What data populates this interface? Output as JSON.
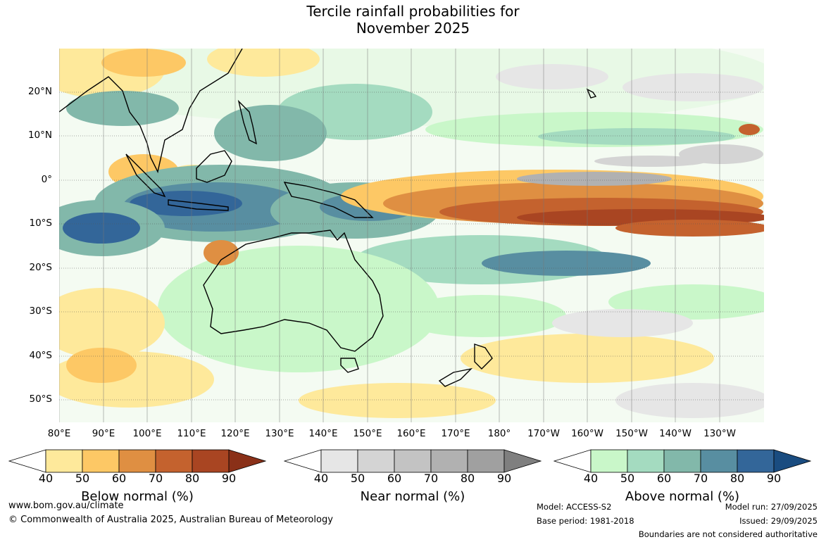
{
  "title": {
    "line1": "Tercile rainfall probabilities for",
    "line2": "November 2025"
  },
  "map": {
    "lat_labels": [
      "20°N",
      "10°N",
      "0°",
      "10°S",
      "20°S",
      "30°S",
      "40°S",
      "50°S"
    ],
    "lon_labels": [
      "80°E",
      "90°E",
      "100°E",
      "110°E",
      "120°E",
      "130°E",
      "140°E",
      "150°E",
      "160°E",
      "170°E",
      "180°",
      "170°W",
      "160°W",
      "150°W",
      "140°W",
      "130°W"
    ]
  },
  "colorbars": [
    {
      "name": "below",
      "label": "Below normal (%)",
      "ticks": [
        "40",
        "50",
        "60",
        "70",
        "80",
        "90"
      ],
      "colors": [
        "#ffffff",
        "#fee99b",
        "#fdc865",
        "#df8f42",
        "#c4622e",
        "#a94522",
        "#8a3018"
      ]
    },
    {
      "name": "near",
      "label": "Near normal (%)",
      "ticks": [
        "40",
        "50",
        "60",
        "70",
        "80",
        "90"
      ],
      "colors": [
        "#ffffff",
        "#e6e6e6",
        "#d4d4d4",
        "#c3c3c3",
        "#b1b1b1",
        "#a0a0a0",
        "#7f7f7f"
      ]
    },
    {
      "name": "above",
      "label": "Above normal (%)",
      "ticks": [
        "40",
        "50",
        "60",
        "70",
        "80",
        "90"
      ],
      "colors": [
        "#ffffff",
        "#c9f7c9",
        "#a4dbc0",
        "#82b8aa",
        "#588ea1",
        "#336699",
        "#1a4c80"
      ]
    }
  ],
  "footer": {
    "website": "www.bom.gov.au/climate",
    "copyright": "© Commonwealth of Australia 2025, Australian Bureau of Meteorology",
    "model": "Model: ACCESS-S2",
    "base_period": "Base period: 1981-2018",
    "model_run": "Model run: 27/09/2025",
    "issued": "Issued: 29/09/2025",
    "disclaimer": "Boundaries are not considered authoritative"
  }
}
